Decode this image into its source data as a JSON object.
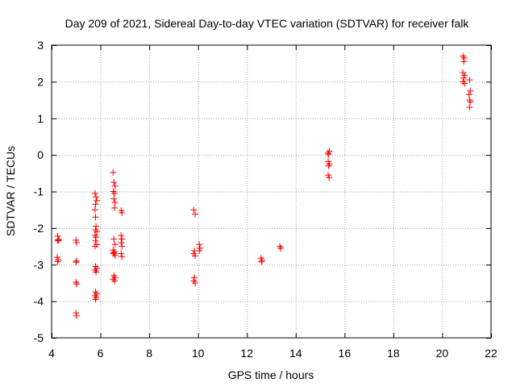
{
  "chart_data": {
    "type": "scatter",
    "title": "Day 209 of 2021, Sidereal Day-to-day VTEC variation (SDTVAR) for receiver falk",
    "xlabel": "GPS time / hours",
    "ylabel": "SDTVAR / TECUs",
    "xlim": [
      4,
      22
    ],
    "ylim": [
      -5,
      3
    ],
    "xticks": [
      4,
      6,
      8,
      10,
      12,
      14,
      16,
      18,
      20,
      22
    ],
    "yticks": [
      -5,
      -4,
      -3,
      -2,
      -1,
      0,
      1,
      2,
      3
    ],
    "xtick_labels": [
      "4",
      "6",
      "8",
      "10",
      "12",
      "14",
      "16",
      "18",
      "20",
      "22"
    ],
    "ytick_labels": [
      "-5",
      "-4",
      "-3",
      "-2",
      "-1",
      "0",
      "1",
      "2",
      "3"
    ],
    "grid": true,
    "marker": "+",
    "color": "#ff0000",
    "series": [
      {
        "name": "SDTVAR",
        "points": [
          [
            4.25,
            -2.22
          ],
          [
            4.27,
            -2.31
          ],
          [
            4.25,
            -2.35
          ],
          [
            4.3,
            -2.33
          ],
          [
            4.23,
            -2.8
          ],
          [
            4.27,
            -2.87
          ],
          [
            4.25,
            -2.92
          ],
          [
            5.0,
            -2.33
          ],
          [
            5.02,
            -2.4
          ],
          [
            5.02,
            -2.9
          ],
          [
            5.0,
            -2.93
          ],
          [
            5.0,
            -3.48
          ],
          [
            5.03,
            -3.53
          ],
          [
            5.0,
            -4.32
          ],
          [
            5.02,
            -4.4
          ],
          [
            5.78,
            -1.05
          ],
          [
            5.82,
            -1.15
          ],
          [
            5.85,
            -1.25
          ],
          [
            5.8,
            -1.35
          ],
          [
            5.78,
            -1.5
          ],
          [
            5.8,
            -1.7
          ],
          [
            5.82,
            -1.95
          ],
          [
            5.8,
            -2.05
          ],
          [
            5.85,
            -2.1
          ],
          [
            5.78,
            -2.2
          ],
          [
            5.82,
            -2.25
          ],
          [
            5.8,
            -2.35
          ],
          [
            5.85,
            -2.45
          ],
          [
            5.78,
            -2.5
          ],
          [
            5.8,
            -3.05
          ],
          [
            5.85,
            -3.1
          ],
          [
            5.78,
            -3.15
          ],
          [
            5.82,
            -3.2
          ],
          [
            5.8,
            -3.75
          ],
          [
            5.85,
            -3.8
          ],
          [
            5.78,
            -3.85
          ],
          [
            5.82,
            -3.9
          ],
          [
            5.8,
            -3.95
          ],
          [
            6.52,
            -0.48
          ],
          [
            6.55,
            -0.75
          ],
          [
            6.6,
            -0.85
          ],
          [
            6.53,
            -1.0
          ],
          [
            6.58,
            -1.05
          ],
          [
            6.55,
            -1.2
          ],
          [
            6.6,
            -1.3
          ],
          [
            6.58,
            -1.45
          ],
          [
            6.55,
            -2.3
          ],
          [
            6.6,
            -2.45
          ],
          [
            6.52,
            -2.6
          ],
          [
            6.58,
            -2.65
          ],
          [
            6.55,
            -2.7
          ],
          [
            6.6,
            -2.75
          ],
          [
            6.53,
            -2.68
          ],
          [
            6.55,
            -3.3
          ],
          [
            6.6,
            -3.35
          ],
          [
            6.52,
            -3.4
          ],
          [
            6.58,
            -3.45
          ],
          [
            6.85,
            -1.52
          ],
          [
            6.88,
            -1.58
          ],
          [
            6.85,
            -2.2
          ],
          [
            6.88,
            -2.3
          ],
          [
            6.85,
            -2.4
          ],
          [
            6.88,
            -2.5
          ],
          [
            6.85,
            -2.7
          ],
          [
            6.88,
            -2.78
          ],
          [
            9.82,
            -1.5
          ],
          [
            9.88,
            -1.62
          ],
          [
            9.85,
            -2.62
          ],
          [
            9.82,
            -2.7
          ],
          [
            9.88,
            -2.76
          ],
          [
            9.85,
            -3.35
          ],
          [
            9.82,
            -3.45
          ],
          [
            9.88,
            -3.5
          ],
          [
            10.05,
            -2.45
          ],
          [
            10.08,
            -2.55
          ],
          [
            10.05,
            -2.62
          ],
          [
            12.58,
            -2.82
          ],
          [
            12.62,
            -2.88
          ],
          [
            12.6,
            -2.92
          ],
          [
            13.35,
            -2.5
          ],
          [
            13.38,
            -2.55
          ],
          [
            15.32,
            0.05
          ],
          [
            15.38,
            0.1
          ],
          [
            15.35,
            0.02
          ],
          [
            15.33,
            -0.18
          ],
          [
            15.38,
            -0.25
          ],
          [
            15.35,
            -0.3
          ],
          [
            15.33,
            -0.55
          ],
          [
            15.37,
            -0.62
          ],
          [
            20.85,
            2.7
          ],
          [
            20.9,
            2.65
          ],
          [
            20.88,
            2.55
          ],
          [
            20.85,
            2.25
          ],
          [
            20.92,
            2.18
          ],
          [
            20.88,
            2.1
          ],
          [
            20.85,
            2.0
          ],
          [
            20.92,
            1.95
          ],
          [
            21.12,
            2.05
          ],
          [
            21.15,
            1.75
          ],
          [
            21.1,
            1.65
          ],
          [
            21.13,
            1.5
          ],
          [
            21.15,
            1.45
          ],
          [
            21.12,
            1.3
          ]
        ]
      }
    ]
  }
}
